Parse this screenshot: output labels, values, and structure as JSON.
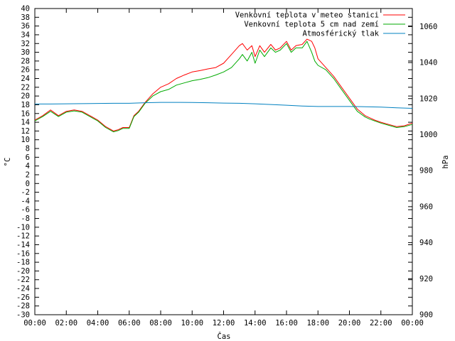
{
  "chart_data": {
    "type": "line",
    "xlabel": "Čas",
    "ylabel": "°C",
    "y2label": "hPa",
    "xlim": [
      0,
      24
    ],
    "ylim": [
      -30,
      40
    ],
    "y2lim": [
      900,
      1070
    ],
    "x_ticks": [
      "00:00",
      "02:00",
      "04:00",
      "06:00",
      "08:00",
      "10:00",
      "12:00",
      "14:00",
      "16:00",
      "18:00",
      "20:00",
      "22:00",
      "00:00"
    ],
    "y_ticks": [
      40,
      38,
      36,
      34,
      32,
      30,
      28,
      26,
      24,
      22,
      20,
      18,
      16,
      14,
      12,
      10,
      8,
      6,
      4,
      2,
      0,
      -2,
      -4,
      -6,
      -8,
      -10,
      -12,
      -14,
      -16,
      -18,
      -20,
      -22,
      -24,
      -26,
      -28,
      -30
    ],
    "y2_ticks": [
      1060,
      1040,
      1020,
      1000,
      980,
      960,
      940,
      920,
      900
    ],
    "grid": false,
    "legend_position": "top-right",
    "series": [
      {
        "name": "Venkovní teplota v meteo stanici",
        "color": "#ff0000",
        "axis": "left",
        "x": [
          0,
          0.5,
          1,
          1.5,
          2,
          2.5,
          3,
          3.5,
          4,
          4.5,
          5,
          5.3,
          5.6,
          6,
          6.3,
          6.6,
          7,
          7.5,
          8,
          8.5,
          9,
          9.5,
          10,
          10.5,
          11,
          11.5,
          12,
          12.5,
          13,
          13.2,
          13.5,
          13.8,
          14,
          14.3,
          14.6,
          15,
          15.3,
          15.6,
          16,
          16.3,
          16.6,
          17,
          17.3,
          17.6,
          17.8,
          18,
          18.5,
          19,
          19.5,
          20,
          20.5,
          21,
          21.3,
          21.6,
          22,
          22.5,
          23,
          23.5,
          24
        ],
        "y": [
          14.5,
          15.5,
          16.8,
          15.5,
          16.5,
          16.8,
          16.5,
          15.5,
          14.5,
          13.0,
          12.0,
          12.3,
          12.8,
          12.8,
          15.5,
          16.5,
          18.5,
          20.5,
          22.0,
          22.8,
          24.0,
          24.8,
          25.5,
          25.8,
          26.2,
          26.5,
          27.5,
          29.5,
          31.5,
          32.0,
          30.5,
          31.5,
          29.0,
          31.5,
          30.0,
          31.8,
          30.5,
          31.0,
          32.5,
          30.5,
          31.5,
          31.8,
          33.0,
          32.5,
          31.0,
          28.5,
          26.5,
          24.5,
          22.0,
          19.5,
          17.0,
          15.5,
          15.0,
          14.5,
          14.0,
          13.5,
          13.0,
          13.2,
          13.8
        ]
      },
      {
        "name": "Venkovní teplota 5 cm nad zemí",
        "color": "#00aa00",
        "axis": "left",
        "x": [
          0,
          0.5,
          1,
          1.5,
          2,
          2.5,
          3,
          3.5,
          4,
          4.5,
          5,
          5.3,
          5.6,
          6,
          6.3,
          6.6,
          7,
          7.5,
          8,
          8.5,
          9,
          9.5,
          10,
          10.5,
          11,
          11.5,
          12,
          12.5,
          13,
          13.2,
          13.5,
          13.8,
          14,
          14.3,
          14.6,
          15,
          15.3,
          15.6,
          16,
          16.3,
          16.6,
          17,
          17.3,
          17.6,
          17.8,
          18,
          18.5,
          19,
          19.5,
          20,
          20.5,
          21,
          21.3,
          21.6,
          22,
          22.5,
          23,
          23.5,
          24
        ],
        "y": [
          14.3,
          15.3,
          16.5,
          15.3,
          16.3,
          16.6,
          16.3,
          15.3,
          14.3,
          12.8,
          11.8,
          12.1,
          12.6,
          12.6,
          15.3,
          16.3,
          18.3,
          20.0,
          21.0,
          21.5,
          22.5,
          23.0,
          23.5,
          23.8,
          24.2,
          24.8,
          25.5,
          26.5,
          28.5,
          29.5,
          28.0,
          30.0,
          27.5,
          30.5,
          29.0,
          31.0,
          30.0,
          30.5,
          32.0,
          30.0,
          31.0,
          31.0,
          32.5,
          30.0,
          28.0,
          27.0,
          26.0,
          24.0,
          21.5,
          19.0,
          16.5,
          15.2,
          14.7,
          14.3,
          13.8,
          13.3,
          12.8,
          13.0,
          13.5
        ]
      },
      {
        "name": "Atmosférický tlak",
        "color": "#0080c0",
        "axis": "right",
        "x": [
          0,
          1,
          2,
          3,
          4,
          5,
          6,
          7,
          8,
          9,
          10,
          11,
          12,
          13,
          14,
          15,
          16,
          17,
          18,
          19,
          20,
          21,
          22,
          23,
          24
        ],
        "y": [
          1017.0,
          1017.0,
          1017.1,
          1017.2,
          1017.3,
          1017.4,
          1017.4,
          1017.7,
          1017.9,
          1017.9,
          1017.8,
          1017.7,
          1017.5,
          1017.4,
          1017.1,
          1016.7,
          1016.3,
          1015.9,
          1015.6,
          1015.6,
          1015.6,
          1015.5,
          1015.3,
          1014.9,
          1014.6
        ]
      }
    ]
  }
}
